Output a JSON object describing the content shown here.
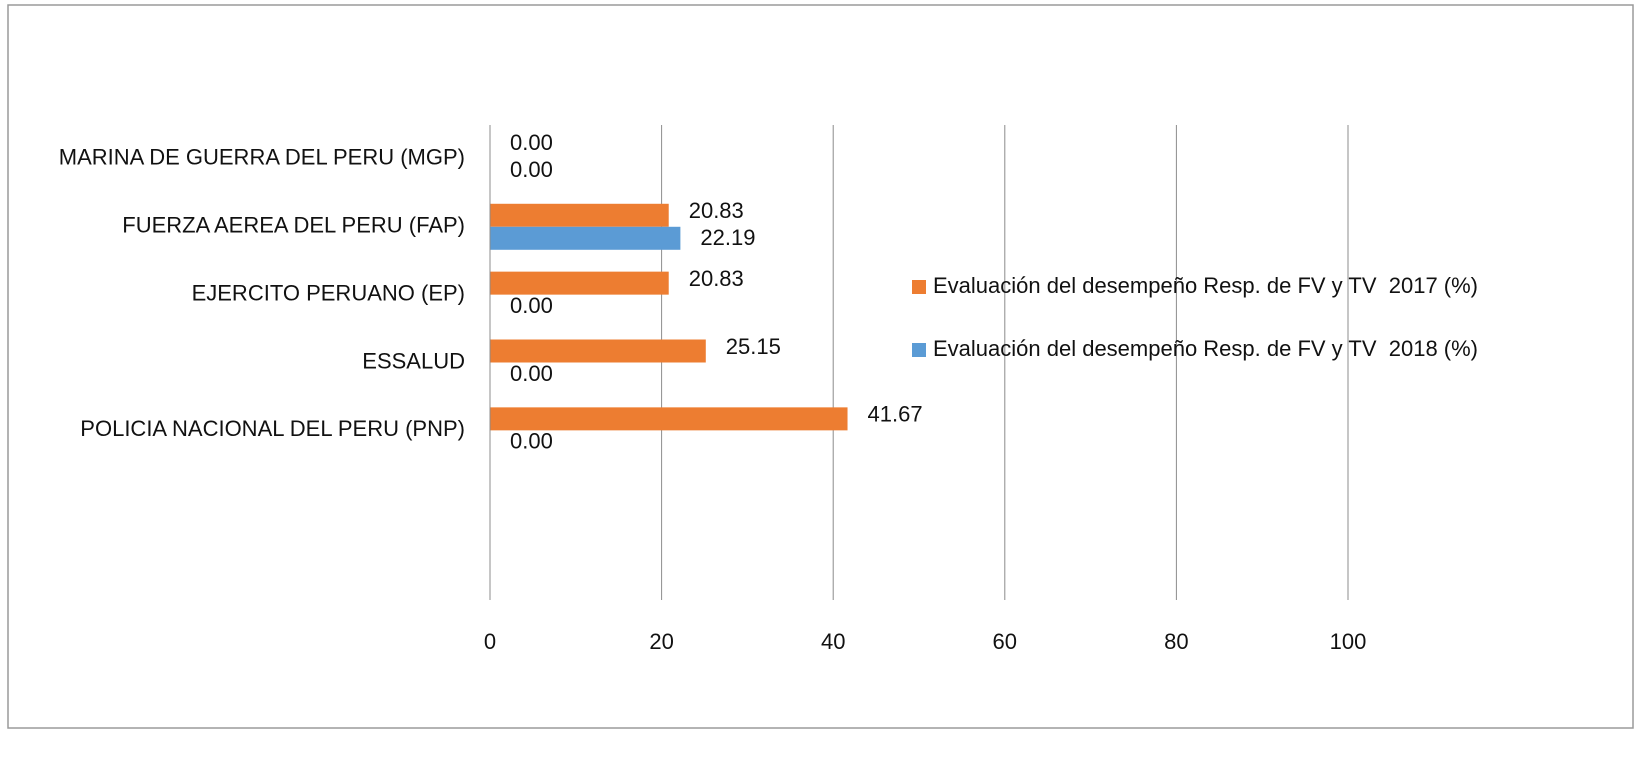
{
  "chart_data": {
    "type": "barh",
    "categories": [
      "MARINA DE GUERRA DEL PERU (MGP)",
      "FUERZA AEREA DEL PERU (FAP)",
      "EJERCITO PERUANO (EP)",
      "ESSALUD",
      "POLICIA NACIONAL DEL PERU (PNP)",
      null,
      null
    ],
    "series": [
      {
        "name": "Evaluación del desempeño Resp. de FV y TV  2017 (%)",
        "color": "#ed7d31",
        "values": [
          0,
          20.83,
          20.83,
          25.15,
          41.67,
          null,
          null
        ],
        "value_labels": [
          "0.00",
          "20.83",
          "20.83",
          "25.15",
          "41.67",
          null,
          null
        ]
      },
      {
        "name": "Evaluación del desempeño Resp. de FV y TV  2018 (%)",
        "color": "#5b9bd5",
        "values": [
          0,
          22.19,
          0,
          0,
          0,
          null,
          null
        ],
        "value_labels": [
          "0.00",
          "22.19",
          "0.00",
          "0.00",
          "0.00",
          null,
          null
        ]
      }
    ],
    "xlim": [
      0,
      100
    ],
    "xticks": [
      0,
      20,
      40,
      60,
      80,
      100
    ],
    "grid": true,
    "legend": "right"
  }
}
